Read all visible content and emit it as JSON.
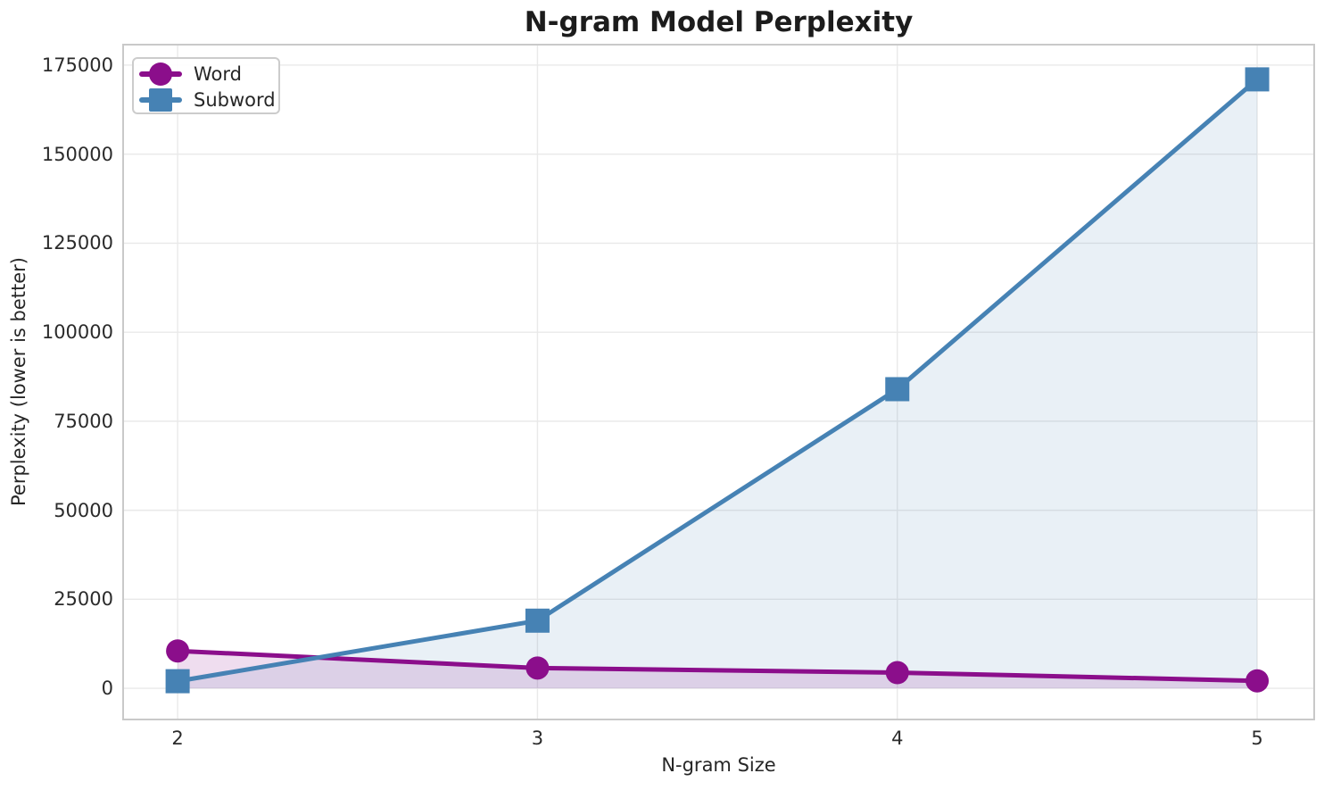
{
  "figure": {
    "title": "N-gram Model Perplexity",
    "xlabel": "N-gram Size",
    "ylabel": "Perplexity (lower is better)"
  },
  "legend": {
    "position": "upper-left",
    "items": [
      "Word",
      "Subword"
    ]
  },
  "colors": {
    "word_purple": "#8B0E8B",
    "subword_blue": "#4682B4",
    "grid": "#E9E9E9",
    "spine": "#C9C9C9",
    "legend_border": "#CCCCCC",
    "text": "#262626",
    "title": "#1C1C1C",
    "background": "#FFFFFF"
  },
  "chart_data": {
    "type": "line",
    "title": "N-gram Model Perplexity",
    "xlabel": "N-gram Size",
    "ylabel": "Perplexity (lower is better)",
    "x": [
      2,
      3,
      4,
      5
    ],
    "series": [
      {
        "name": "Word",
        "color": "#8B0E8B",
        "marker": "circle",
        "line_width": 5,
        "fill_opacity": 0.14,
        "values": [
          10500,
          5700,
          4400,
          2100
        ]
      },
      {
        "name": "Subword",
        "color": "#4682B4",
        "marker": "square",
        "line_width": 5,
        "fill_opacity": 0.12,
        "values": [
          2000,
          19000,
          84000,
          171000
        ]
      }
    ],
    "x_ticks": [
      2,
      3,
      4,
      5
    ],
    "y_ticks": [
      0,
      25000,
      50000,
      75000,
      100000,
      125000,
      150000,
      175000
    ],
    "xlim": [
      1.851,
      5.156
    ],
    "ylim": [
      -8500,
      180500
    ],
    "grid": true,
    "area_fill_to_zero": true,
    "legend_position": "upper left"
  }
}
